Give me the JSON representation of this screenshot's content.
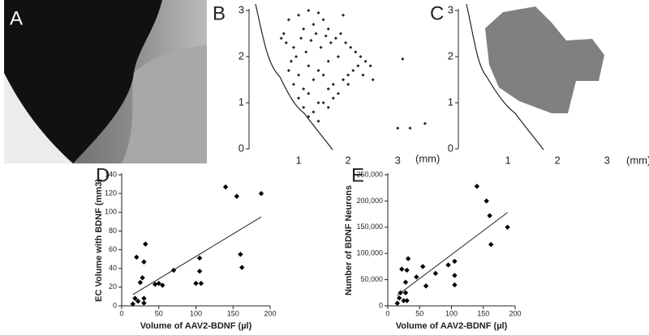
{
  "chart_data": [
    {
      "type": "image",
      "panel_label": "A"
    },
    {
      "type": "scatter",
      "panel_label": "B",
      "xlabel": "(mm)",
      "x": [
        0.7,
        0.8,
        0.9,
        1.0,
        1.1,
        1.2,
        1.3,
        1.4,
        1.5,
        1.6,
        0.75,
        0.85,
        0.95,
        1.05,
        1.15,
        1.25,
        1.35,
        1.45,
        1.55,
        1.65,
        1.75,
        1.85,
        1.95,
        2.05,
        2.15,
        2.25,
        2.35,
        2.45,
        0.8,
        1.0,
        1.2,
        1.4,
        1.6,
        1.8,
        2.0,
        2.2,
        0.9,
        1.1,
        1.3,
        1.5,
        1.7,
        1.9,
        2.1,
        2.3,
        1.0,
        1.2,
        1.4,
        1.6,
        1.8,
        2.0,
        1.1,
        1.3,
        1.5,
        1.7,
        1.2,
        1.4,
        1.6,
        0.65,
        1.9,
        2.5,
        3.0,
        3.25,
        3.55,
        3.1
      ],
      "y": [
        2.5,
        2.8,
        2.2,
        2.9,
        2.6,
        3.0,
        2.7,
        2.95,
        2.8,
        2.6,
        2.3,
        1.9,
        2.0,
        2.4,
        2.1,
        2.35,
        2.5,
        2.2,
        2.45,
        2.3,
        2.4,
        2.5,
        2.3,
        2.2,
        2.1,
        2.0,
        1.9,
        1.8,
        1.7,
        1.6,
        1.8,
        1.7,
        1.9,
        2.0,
        1.6,
        1.8,
        1.4,
        1.3,
        1.5,
        1.6,
        1.4,
        1.5,
        1.7,
        1.6,
        1.1,
        1.2,
        1.0,
        1.3,
        1.2,
        1.4,
        0.9,
        0.8,
        1.0,
        1.1,
        0.7,
        0.6,
        0.9,
        2.4,
        2.9,
        1.5,
        0.45,
        0.45,
        0.55,
        1.95
      ],
      "color": "#222222",
      "xlim": [
        0,
        3.7
      ],
      "ylim": [
        0,
        3
      ],
      "xticks": [
        1,
        2,
        3
      ],
      "yticks": [
        0,
        1,
        2,
        3
      ]
    },
    {
      "type": "region",
      "panel_label": "C",
      "xlabel": "(mm)",
      "color": "#808080",
      "xlim": [
        0,
        3.7
      ],
      "ylim": [
        0,
        3
      ],
      "xticks": [
        1,
        2,
        3
      ],
      "yticks": [
        0,
        1,
        2,
        3
      ]
    },
    {
      "type": "scatter",
      "panel_label": "D",
      "xlabel": "Volume of AAV2-BDNF (µl)",
      "ylabel": "EC Volume with BDNF (mm3)",
      "x": [
        15,
        18,
        20,
        22,
        25,
        28,
        30,
        30,
        32,
        45,
        50,
        55,
        70,
        100,
        105,
        105,
        107,
        140,
        155,
        160,
        162,
        188,
        30
      ],
      "y": [
        2,
        8,
        52,
        5,
        25,
        30,
        47,
        8,
        66,
        23,
        24,
        22,
        38,
        24,
        37,
        51,
        24,
        127,
        117,
        55,
        41,
        120,
        3
      ],
      "trend_line": {
        "x": [
          15,
          188
        ],
        "y": [
          12,
          95
        ]
      },
      "color": "#000000",
      "xlim": [
        0,
        200
      ],
      "ylim": [
        0,
        140
      ],
      "xticks": [
        0,
        50,
        100,
        150,
        200
      ],
      "yticks": [
        0,
        20,
        40,
        60,
        80,
        100,
        120,
        140
      ]
    },
    {
      "type": "scatter",
      "panel_label": "E",
      "xlabel": "Volume of AAV2-BDNF (µl)",
      "ylabel": "Number of BDNF Neurons",
      "x": [
        15,
        18,
        20,
        22,
        25,
        28,
        30,
        30,
        32,
        45,
        55,
        60,
        75,
        95,
        105,
        105,
        105,
        140,
        155,
        160,
        162,
        188,
        28
      ],
      "y": [
        5000,
        15000,
        25000,
        70000,
        10000,
        45000,
        68000,
        10000,
        90000,
        55000,
        75000,
        38000,
        62000,
        78000,
        85000,
        40000,
        58000,
        228000,
        200000,
        172000,
        117000,
        150000,
        25000
      ],
      "trend_line": {
        "x": [
          15,
          188
        ],
        "y": [
          20000,
          178000
        ]
      },
      "color": "#000000",
      "xlim": [
        0,
        200
      ],
      "ylim": [
        0,
        250000
      ],
      "xticks": [
        0,
        50,
        100,
        150,
        200
      ],
      "yticks": [
        0,
        {
          "value": 50000,
          "label": "50,000"
        },
        {
          "value": 100000,
          "label": "100,000"
        },
        {
          "value": 150000,
          "label": "150,000"
        },
        {
          "value": 200000,
          "label": "200,000"
        },
        {
          "value": 250000,
          "label": "250,000"
        }
      ]
    }
  ]
}
